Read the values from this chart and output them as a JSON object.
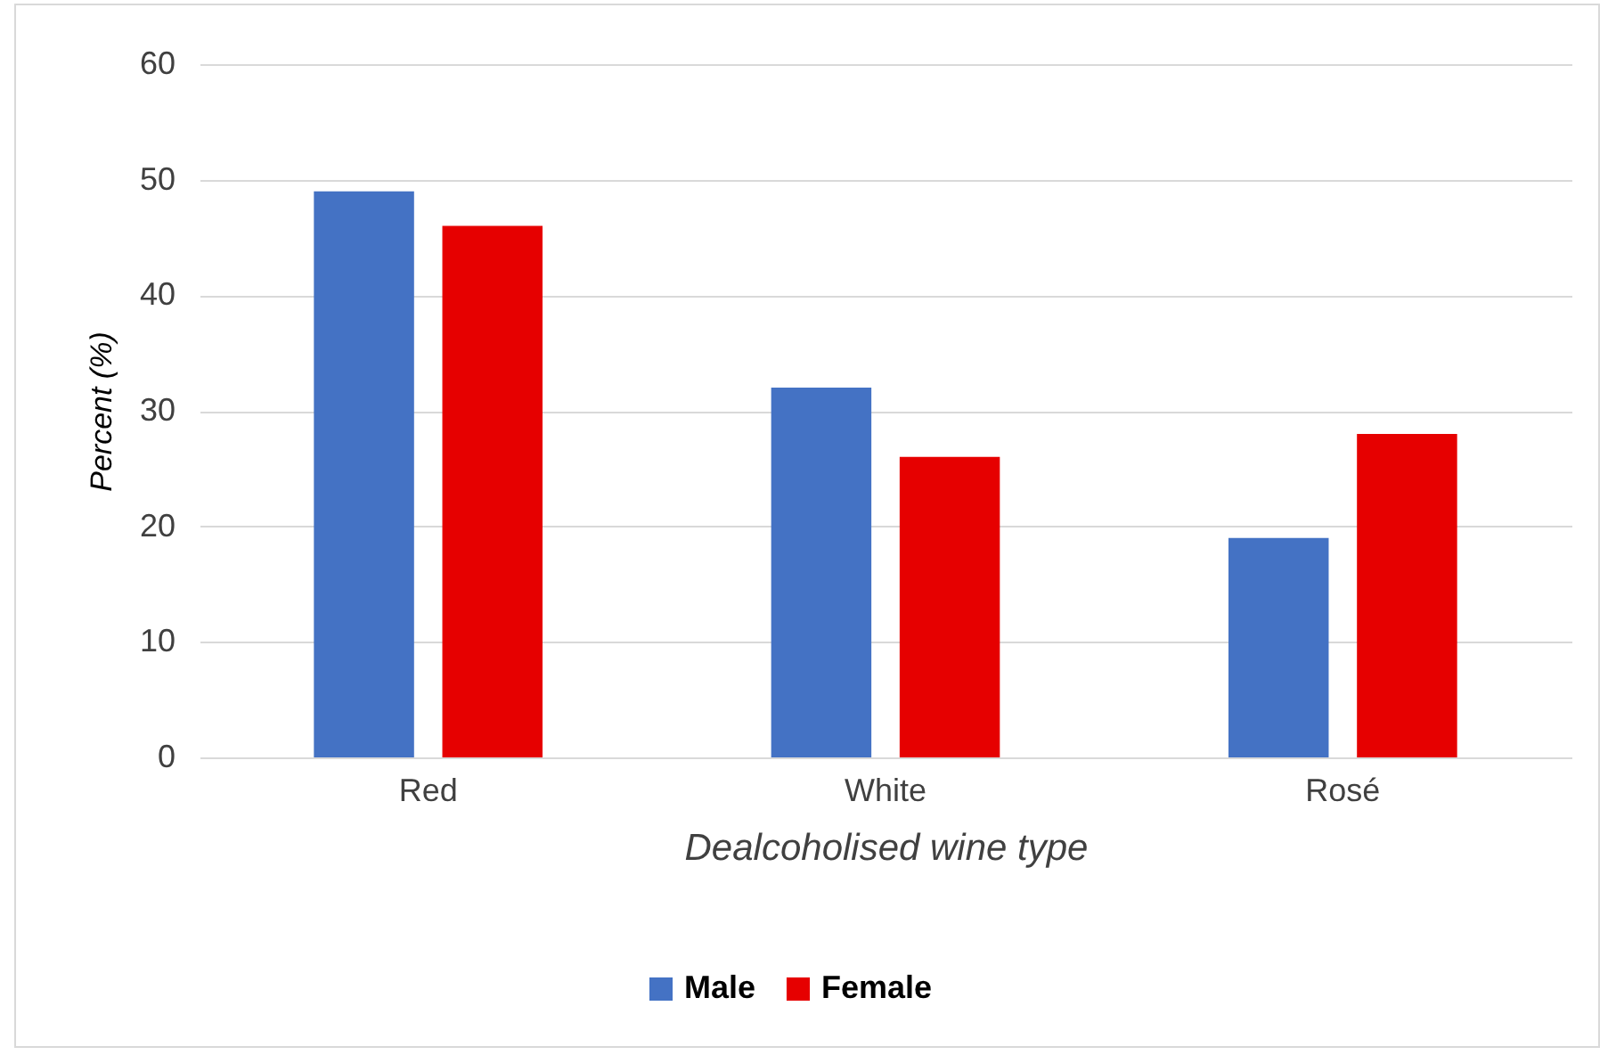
{
  "chart_data": {
    "type": "bar",
    "xlabel": "Dealcoholised wine type",
    "ylabel": "Percent (%)",
    "categories": [
      "Red",
      "White",
      "Rosé"
    ],
    "series": [
      {
        "name": "Male",
        "color": "#4472c4",
        "values": [
          49,
          32,
          19
        ]
      },
      {
        "name": "Female",
        "color": "#e60000",
        "values": [
          46,
          26,
          28
        ]
      }
    ],
    "ylim": [
      0,
      60
    ],
    "yticks": [
      0,
      10,
      20,
      30,
      40,
      50,
      60
    ],
    "grid": "y",
    "legend": "bottom"
  }
}
